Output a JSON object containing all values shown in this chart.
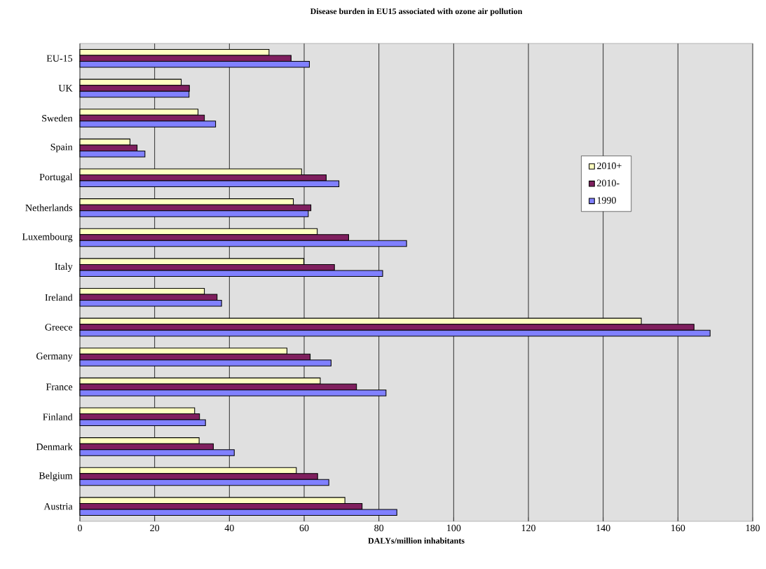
{
  "chart_data": {
    "type": "bar",
    "orientation": "horizontal",
    "title": "Disease burden in EU15 associated with ozone air pollution",
    "xlabel": "DALYs/million inhabitants",
    "categories": [
      "EU-15",
      "UK",
      "Sweden",
      "Spain",
      "Portugal",
      "Netherlands",
      "Luxembourg",
      "Italy",
      "Ireland",
      "Greece",
      "Germany",
      "France",
      "Finland",
      "Denmark",
      "Belgium",
      "Austria"
    ],
    "series": [
      {
        "name": "2010+",
        "color": "#ffffc0",
        "values": [
          50.6,
          27.1,
          31.6,
          13.4,
          59.3,
          57.1,
          63.5,
          59.9,
          33.3,
          150.2,
          55.4,
          64.3,
          30.7,
          31.9,
          57.9,
          70.9
        ]
      },
      {
        "name": "2010-",
        "color": "#7f1f5f",
        "values": [
          56.5,
          29.3,
          33.3,
          15.3,
          65.9,
          61.8,
          71.9,
          68.1,
          36.7,
          164.3,
          61.6,
          74.0,
          32.0,
          35.7,
          63.6,
          75.5
        ]
      },
      {
        "name": "1990",
        "color": "#8080ff",
        "values": [
          61.4,
          29.2,
          36.3,
          17.4,
          69.3,
          61.1,
          87.4,
          81.0,
          37.9,
          168.6,
          67.2,
          81.9,
          33.6,
          41.3,
          66.6,
          84.8
        ]
      }
    ],
    "xlim": [
      0,
      180
    ],
    "xticks": [
      0,
      20,
      40,
      60,
      80,
      100,
      120,
      140,
      160,
      180
    ],
    "grid": "x",
    "legend": "right"
  }
}
